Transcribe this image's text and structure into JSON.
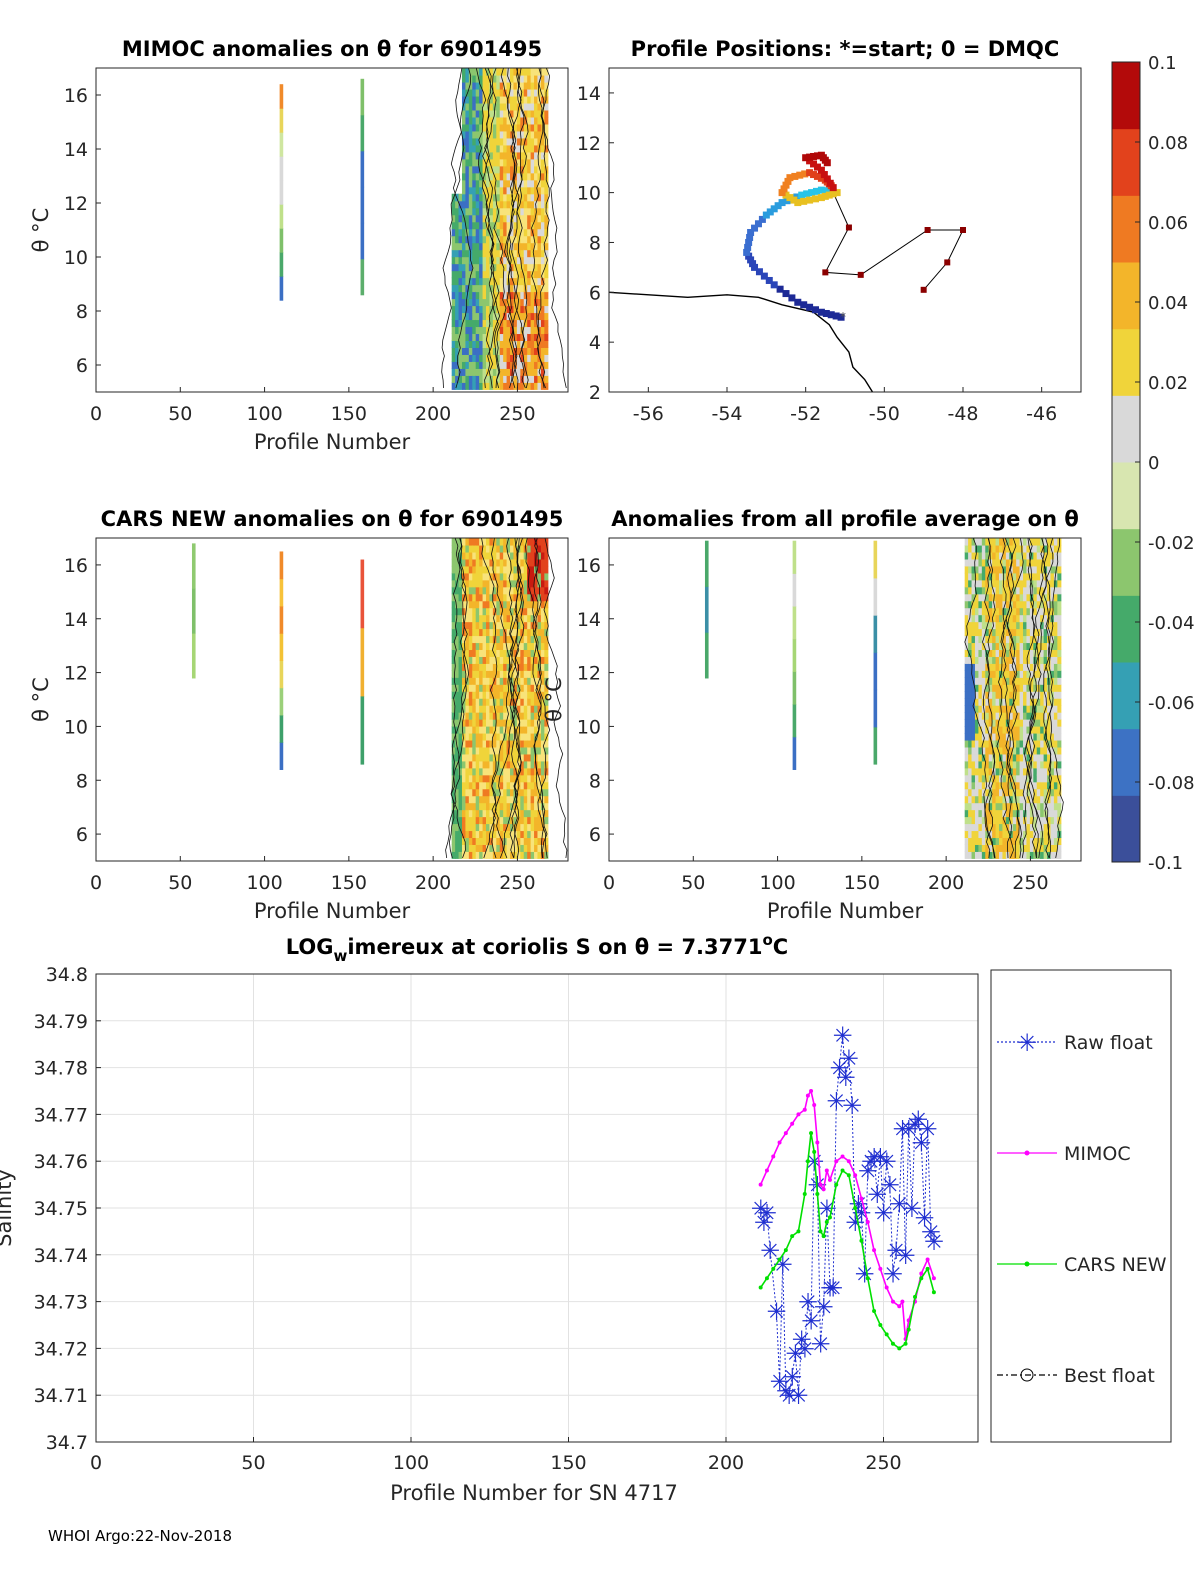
{
  "footer": "WHOI Argo:22-Nov-2018",
  "chart_data": [
    {
      "type": "heatmap",
      "id": "mimoc",
      "title": "MIMOC anomalies on θ  for 6901495",
      "xlabel": "Profile Number",
      "ylabel": "θ °C",
      "xlim": [
        0,
        280
      ],
      "ylim": [
        5,
        17
      ],
      "xticks": [
        0,
        50,
        100,
        150,
        200,
        250
      ],
      "yticks": [
        6,
        8,
        10,
        12,
        14,
        16
      ],
      "strips": [
        {
          "x": 110,
          "ymin": 8.4,
          "ymax": 16.4,
          "colors": [
            "#3b6fc4",
            "#4aa86a",
            "#7fc06a",
            "#bfe08a",
            "#d9d9d9",
            "#d9d9d9",
            "#cfe6a0",
            "#e8d55a",
            "#f08a2a"
          ]
        },
        {
          "x": 158,
          "ymin": 8.6,
          "ymax": 16.6,
          "colors": [
            "#5cae6c",
            "#3b6fc4",
            "#3b6fc4",
            "#3b6fc4",
            "#4aa86a",
            "#7fc06a"
          ]
        }
      ],
      "block": {
        "xmin": 211,
        "xmax": 268,
        "ymin": 5.1,
        "ymax": 17,
        "note": "dense anomaly field, mostly blue-green on left, yellow-orange-red on right"
      }
    },
    {
      "type": "scatter",
      "id": "positions",
      "title": "Profile Positions: *=start; 0 = DMQC",
      "xlim": [
        -57,
        -45
      ],
      "ylim": [
        2,
        15
      ],
      "xticks": [
        -56,
        -54,
        -52,
        -50,
        -48,
        -46
      ],
      "yticks": [
        2,
        4,
        6,
        8,
        10,
        12,
        14
      ],
      "markers_dark": [
        [
          -51.3,
          10
        ],
        [
          -50.9,
          8.6
        ],
        [
          -51.5,
          6.8
        ],
        [
          -50.6,
          6.7
        ],
        [
          -48.9,
          8.5
        ],
        [
          -48,
          8.5
        ],
        [
          -48.4,
          7.2
        ],
        [
          -49,
          6.1
        ]
      ],
      "track": [
        [
          -51.1,
          5.0
        ],
        [
          -51.6,
          5.2
        ],
        [
          -52.2,
          5.6
        ],
        [
          -52.8,
          6.3
        ],
        [
          -53.3,
          7.0
        ],
        [
          -53.5,
          7.6
        ],
        [
          -53.4,
          8.4
        ],
        [
          -53.0,
          9.1
        ],
        [
          -52.6,
          9.6
        ],
        [
          -52.1,
          9.9
        ],
        [
          -51.6,
          10.1
        ],
        [
          -51.2,
          10.0
        ],
        [
          -51.6,
          9.8
        ],
        [
          -52.2,
          9.6
        ],
        [
          -52.6,
          10.0
        ],
        [
          -52.4,
          10.6
        ],
        [
          -51.9,
          10.8
        ],
        [
          -51.5,
          10.5
        ],
        [
          -51.3,
          10.2
        ],
        [
          -51.6,
          10.9
        ],
        [
          -52.0,
          11.4
        ],
        [
          -51.6,
          11.5
        ],
        [
          -51.4,
          11.1
        ]
      ],
      "coast": [
        [
          -57,
          6.0
        ],
        [
          -55,
          5.8
        ],
        [
          -54,
          5.9
        ],
        [
          -53.2,
          5.8
        ],
        [
          -52.6,
          5.5
        ],
        [
          -51.8,
          5.2
        ],
        [
          -51.4,
          4.7
        ],
        [
          -51.2,
          4.2
        ],
        [
          -50.9,
          3.6
        ],
        [
          -50.8,
          3.0
        ],
        [
          -50.5,
          2.5
        ],
        [
          -50.3,
          2.0
        ]
      ]
    },
    {
      "type": "heatmap",
      "id": "cars",
      "title": "CARS NEW anomalies on θ for 6901495",
      "xlabel": "Profile Number",
      "ylabel": "θ °C",
      "xlim": [
        0,
        280
      ],
      "ylim": [
        5,
        17
      ],
      "xticks": [
        0,
        50,
        100,
        150,
        200,
        250
      ],
      "yticks": [
        6,
        8,
        10,
        12,
        14,
        16
      ],
      "strips": [
        {
          "x": 58,
          "ymin": 11.8,
          "ymax": 16.8,
          "colors": [
            "#a6d675",
            "#7fc06a",
            "#8fca70"
          ]
        },
        {
          "x": 110,
          "ymin": 8.4,
          "ymax": 16.5,
          "colors": [
            "#3b6fc4",
            "#3ea06a",
            "#9bd07a",
            "#e8d55a",
            "#f3c235",
            "#f08a2a",
            "#f7c23a",
            "#f08a2a"
          ]
        },
        {
          "x": 158,
          "ymin": 8.6,
          "ymax": 16.2,
          "colors": [
            "#3ea06a",
            "#f0b030",
            "#e9533a"
          ]
        }
      ],
      "block": {
        "xmin": 211,
        "xmax": 268,
        "ymin": 5.1,
        "ymax": 17,
        "note": "mostly yellow-orange with green edges and red patches"
      }
    },
    {
      "type": "heatmap",
      "id": "avg",
      "title": "Anomalies from all profile average on θ",
      "xlabel": "Profile Number",
      "ylabel": "θ °C",
      "xlim": [
        0,
        280
      ],
      "ylim": [
        5,
        17
      ],
      "xticks": [
        0,
        50,
        100,
        150,
        200,
        250
      ],
      "yticks": [
        6,
        8,
        10,
        12,
        14,
        16
      ],
      "strips": [
        {
          "x": 58,
          "ymin": 11.8,
          "ymax": 16.9,
          "colors": [
            "#4aa86a",
            "#3b8fa6",
            "#4aa86a"
          ]
        },
        {
          "x": 110,
          "ymin": 8.4,
          "ymax": 16.9,
          "colors": [
            "#3b6fc4",
            "#4aa86a",
            "#7fc06a",
            "#a6d675",
            "#bfe08a",
            "#d9d9d9",
            "#bfe08a"
          ]
        },
        {
          "x": 158,
          "ymin": 8.6,
          "ymax": 16.9,
          "colors": [
            "#4aa86a",
            "#3b6fc4",
            "#3b6fc4",
            "#3b8fa6",
            "#d9d9d9",
            "#e8d55a"
          ]
        }
      ],
      "block": {
        "xmin": 211,
        "xmax": 268,
        "ymin": 5.1,
        "ymax": 17,
        "note": "green and gray with orange-yellow columns"
      }
    },
    {
      "type": "colorbar",
      "id": "colorbar",
      "min": -0.1,
      "max": 0.1,
      "ticks": [
        "0.1",
        "0.08",
        "0.06",
        "0.04",
        "0.02",
        "0",
        "-0.02",
        "-0.04",
        "-0.06",
        "-0.08",
        "-0.1"
      ],
      "colors": [
        "#3b4f9a",
        "#3d72c4",
        "#35a0b4",
        "#45aa6a",
        "#8cc66e",
        "#d8e6b0",
        "#d9d9d9",
        "#f0d43a",
        "#f3b52a",
        "#ef7a22",
        "#e2421c",
        "#b30a0a"
      ]
    },
    {
      "type": "line",
      "id": "salinity",
      "title": "LOG",
      "title_sub": "w",
      "title_rest": "imereux at coriolis S on θ = 7.3771",
      "title_sup": "o",
      "title_end": "C",
      "xlabel": "Profile Number for SN 4717",
      "ylabel": "Salinity",
      "xlim": [
        0,
        280
      ],
      "ylim": [
        34.7,
        34.8
      ],
      "xticks": [
        0,
        50,
        100,
        150,
        200,
        250
      ],
      "yticks": [
        "34.7",
        "34.71",
        "34.72",
        "34.73",
        "34.74",
        "34.75",
        "34.76",
        "34.77",
        "34.78",
        "34.79",
        "34.8"
      ],
      "legend": [
        "Raw float",
        "MIMOC",
        "CARS NEW",
        "Best float"
      ],
      "series": [
        {
          "name": "Raw float",
          "color": "#1f2fd0",
          "x": [
            211,
            212,
            213,
            214,
            216,
            217,
            218,
            219,
            220,
            221,
            222,
            223,
            224,
            225,
            226,
            227,
            228,
            229,
            230,
            231,
            232,
            233,
            234,
            235,
            236,
            237,
            238,
            239,
            240,
            241,
            242,
            243,
            244,
            245,
            246,
            247,
            248,
            249,
            250,
            251,
            252,
            253,
            254,
            255,
            256,
            257,
            258,
            259,
            260,
            261,
            262,
            263,
            264,
            265,
            266
          ],
          "y": [
            34.75,
            34.747,
            34.749,
            34.741,
            34.728,
            34.713,
            34.738,
            34.711,
            34.71,
            34.714,
            34.719,
            34.71,
            34.722,
            34.72,
            34.73,
            34.726,
            34.76,
            34.755,
            34.721,
            34.729,
            34.75,
            34.733,
            34.733,
            34.773,
            34.78,
            34.787,
            34.778,
            34.782,
            34.772,
            34.747,
            34.751,
            34.749,
            34.736,
            34.758,
            34.76,
            34.761,
            34.753,
            34.761,
            34.749,
            34.76,
            34.755,
            34.736,
            34.741,
            34.751,
            34.767,
            34.74,
            34.767,
            34.75,
            34.768,
            34.769,
            34.764,
            34.748,
            34.767,
            34.745,
            34.743
          ]
        },
        {
          "name": "MIMOC",
          "color": "#ff00ff",
          "x": [
            211,
            213,
            215,
            217,
            219,
            221,
            223,
            225,
            226,
            227,
            228,
            229,
            230,
            231,
            232,
            233,
            235,
            237,
            239,
            241,
            243,
            245,
            247,
            249,
            251,
            253,
            255,
            256,
            257,
            258,
            260,
            262,
            264,
            266
          ],
          "y": [
            34.755,
            34.758,
            34.761,
            34.764,
            34.766,
            34.768,
            34.77,
            34.771,
            34.774,
            34.775,
            34.772,
            34.764,
            34.755,
            34.754,
            34.758,
            34.756,
            34.76,
            34.761,
            34.76,
            34.757,
            34.752,
            34.747,
            34.741,
            34.737,
            34.733,
            34.73,
            34.729,
            34.73,
            34.722,
            34.726,
            34.73,
            34.736,
            34.739,
            34.735
          ]
        },
        {
          "name": "CARS NEW",
          "color": "#00e000",
          "x": [
            211,
            213,
            215,
            217,
            219,
            221,
            223,
            225,
            226,
            227,
            228,
            229,
            230,
            231,
            232,
            233,
            235,
            237,
            239,
            241,
            243,
            245,
            247,
            249,
            251,
            253,
            255,
            257,
            258,
            260,
            262,
            264,
            266
          ],
          "y": [
            34.733,
            34.735,
            34.737,
            34.739,
            34.741,
            34.744,
            34.745,
            34.753,
            34.76,
            34.766,
            34.762,
            34.753,
            34.745,
            34.744,
            34.747,
            34.748,
            34.755,
            34.758,
            34.757,
            34.75,
            34.743,
            34.735,
            34.728,
            34.725,
            34.723,
            34.721,
            34.72,
            34.721,
            34.724,
            34.731,
            34.735,
            34.737,
            34.732
          ]
        }
      ]
    }
  ]
}
